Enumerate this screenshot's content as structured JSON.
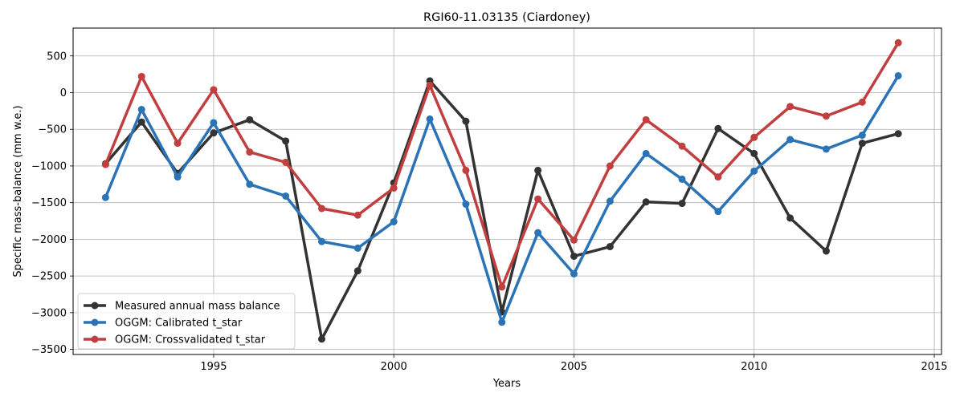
{
  "chart_data": {
    "type": "line",
    "title": "RGI60-11.03135 (Ciardoney)",
    "xlabel": "Years",
    "ylabel": "Specific mass-balance (mm w.e.)",
    "xlim": [
      1991.1,
      2015.2
    ],
    "ylim": [
      -3570,
      880
    ],
    "xticks": [
      1995,
      2000,
      2005,
      2010,
      2015
    ],
    "yticks": [
      500,
      0,
      -500,
      -1000,
      -1500,
      -2000,
      -2500,
      -3000,
      -3500
    ],
    "grid": true,
    "legend_position": "lower-left",
    "x": [
      1992,
      1993,
      1994,
      1995,
      1996,
      1997,
      1998,
      1999,
      2000,
      2001,
      2002,
      2003,
      2004,
      2005,
      2006,
      2007,
      2008,
      2009,
      2010,
      2011,
      2012,
      2013,
      2014
    ],
    "series": [
      {
        "name": "Measured annual mass balance",
        "color": "#333333",
        "values": [
          -970,
          -400,
          -1100,
          -550,
          -370,
          -660,
          -3360,
          -2430,
          -1230,
          160,
          -390,
          -2990,
          -1060,
          -2230,
          -2100,
          -1490,
          -1510,
          -490,
          -830,
          -1710,
          -2160,
          -690,
          -560
        ]
      },
      {
        "name": "OGGM: Calibrated t_star",
        "color": "#2b73b7",
        "values": [
          -1430,
          -230,
          -1150,
          -410,
          -1250,
          -1410,
          -2030,
          -2120,
          -1760,
          -360,
          -1520,
          -3130,
          -1910,
          -2470,
          -1480,
          -830,
          -1180,
          -1620,
          -1070,
          -640,
          -770,
          -580,
          230
        ]
      },
      {
        "name": "OGGM: Crossvalidated t_star",
        "color": "#c13f3f",
        "values": [
          -980,
          220,
          -690,
          40,
          -810,
          -950,
          -1580,
          -1670,
          -1300,
          100,
          -1060,
          -2650,
          -1450,
          -2010,
          -1000,
          -370,
          -730,
          -1150,
          -610,
          -190,
          -320,
          -130,
          680
        ]
      }
    ]
  }
}
